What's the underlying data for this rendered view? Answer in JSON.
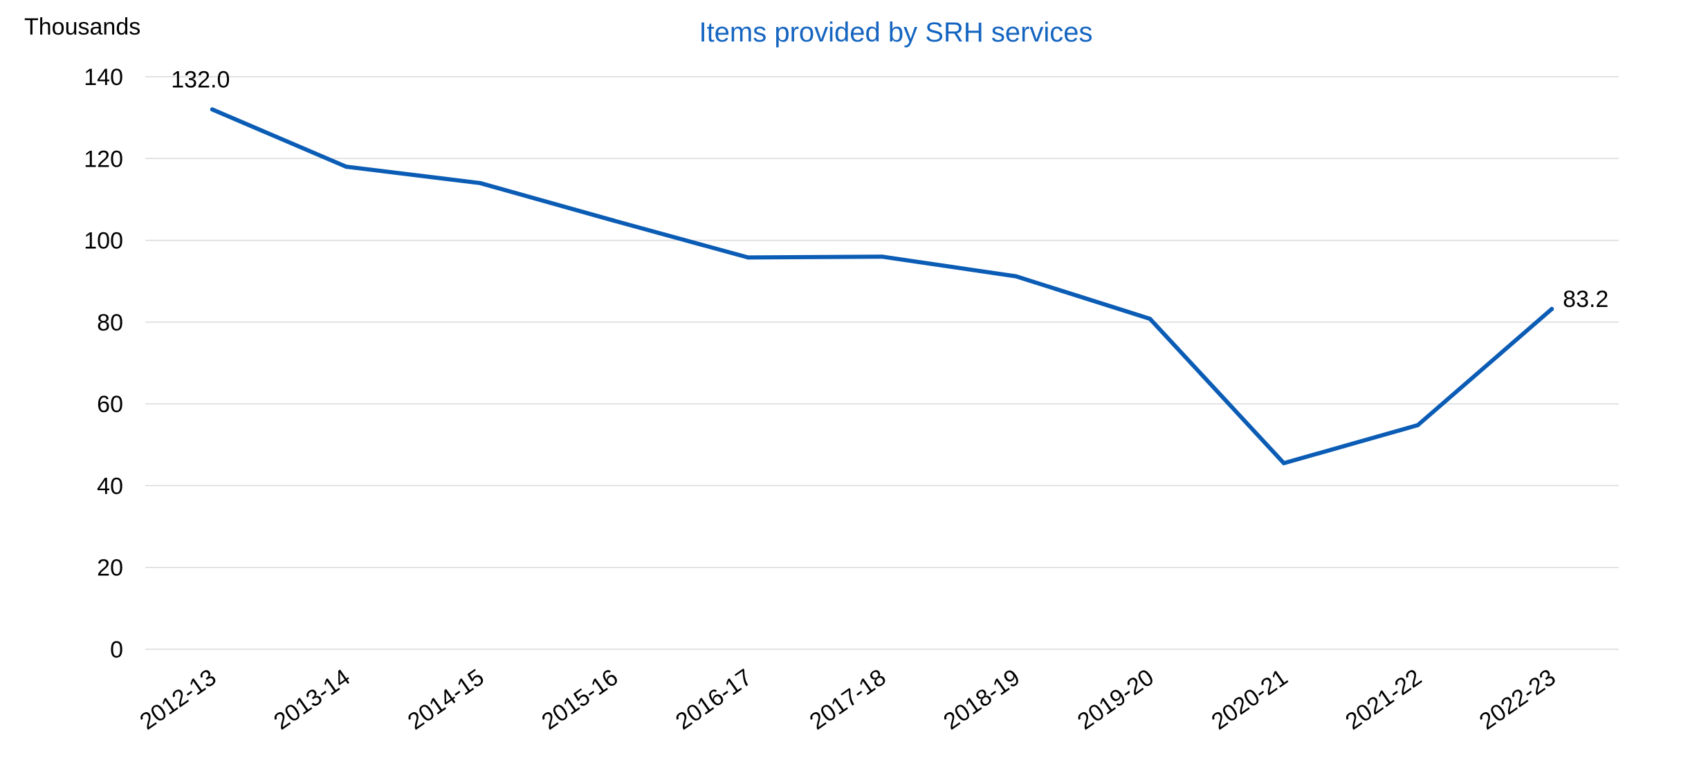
{
  "colors": {
    "title": "#1565c0",
    "series": "#0b5cb5",
    "gridline": "#d9d9d9",
    "text": "#000000"
  },
  "chart_data": {
    "type": "line",
    "title": "Items provided by SRH services",
    "ylabel": "Thousands",
    "xlabel": "",
    "categories": [
      "2012-13",
      "2013-14",
      "2014-15",
      "2015-16",
      "2016-17",
      "2017-18",
      "2018-19",
      "2019-20",
      "2020-21",
      "2021-22",
      "2022-23"
    ],
    "series": [
      {
        "values": [
          132.0,
          118.0,
          114.0,
          104.8,
          95.8,
          96.0,
          91.2,
          80.8,
          45.5,
          54.8,
          83.2
        ]
      }
    ],
    "data_labels": [
      {
        "index": 0,
        "text": "132.0"
      },
      {
        "index": 10,
        "text": "83.2"
      }
    ],
    "ylim": [
      0,
      140
    ],
    "yticks": [
      0,
      20,
      40,
      60,
      80,
      100,
      120,
      140
    ],
    "grid": true,
    "legend": "none"
  }
}
